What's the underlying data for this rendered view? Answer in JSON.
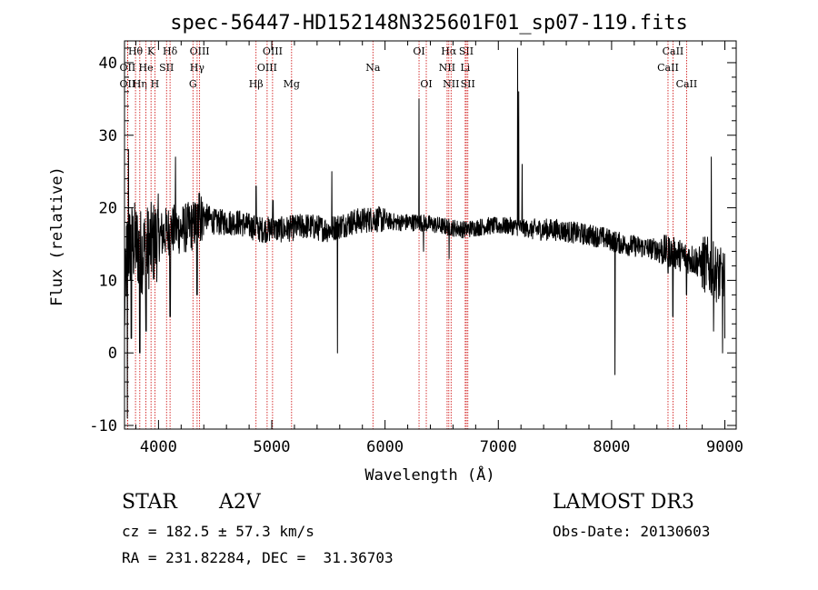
{
  "chart_data": {
    "type": "line",
    "title": "spec-56447-HD152148N325601F01_sp07-119.fits",
    "xlabel": "Wavelength (Å)",
    "ylabel": "Flux (relative)",
    "xlim": [
      3700,
      9100
    ],
    "ylim": [
      -10.5,
      43
    ],
    "xticks": [
      4000,
      5000,
      6000,
      7000,
      8000,
      9000
    ],
    "yticks": [
      -10,
      0,
      10,
      20,
      30,
      40
    ],
    "grid": false,
    "spectrum_anchors": {
      "x": [
        3700,
        3720,
        3760,
        3800,
        3850,
        3900,
        3950,
        4000,
        4100,
        4200,
        4300,
        4400,
        4500,
        4700,
        4900,
        5100,
        5300,
        5500,
        5700,
        5900,
        6100,
        6300,
        6500,
        6700,
        6900,
        7100,
        7300,
        7500,
        7700,
        7900,
        8100,
        8300,
        8500,
        8700,
        8850,
        9000
      ],
      "y": [
        5,
        14,
        15,
        15,
        14,
        14.5,
        15,
        16,
        17,
        17,
        17.5,
        19,
        18,
        18,
        17,
        17,
        17.5,
        17,
        18,
        18.5,
        18,
        18,
        17.5,
        17,
        17.5,
        17.5,
        17,
        17,
        16.5,
        16,
        15,
        14.5,
        14,
        13,
        12,
        10
      ]
    },
    "spectrum_features": {
      "x": [
        3725,
        3735,
        3760,
        3835,
        3890,
        4102,
        4150,
        4340,
        4360,
        4861,
        5010,
        5530,
        5580,
        6300,
        6340,
        6565,
        7170,
        7180,
        7210,
        8030,
        8498,
        8542,
        8662,
        8880,
        8900,
        8940,
        8980,
        9000
      ],
      "y": [
        -9,
        28,
        2,
        0,
        3,
        5,
        27,
        8,
        22,
        23,
        21,
        25,
        0,
        35,
        14,
        13,
        42,
        36,
        26,
        -3,
        11,
        5,
        8,
        27,
        3,
        12,
        0,
        2
      ],
      "width": [
        4,
        3,
        5,
        5,
        5,
        8,
        4,
        6,
        5,
        6,
        5,
        3,
        3,
        3,
        3,
        4,
        3,
        3,
        4,
        3,
        4,
        4,
        4,
        4,
        4,
        4,
        4,
        4
      ]
    },
    "lines": [
      {
        "label": "Hθ",
        "x": 3797,
        "row": 0
      },
      {
        "label": "OII",
        "x": 3727,
        "row": 1
      },
      {
        "label": "OII",
        "x": 3727,
        "row": 2
      },
      {
        "label": "Hη",
        "x": 3835,
        "row": 2
      },
      {
        "label": "He",
        "x": 3889,
        "row": 1
      },
      {
        "label": "K",
        "x": 3934,
        "row": 0
      },
      {
        "label": "SII",
        "x": 4071,
        "row": 1
      },
      {
        "label": "H",
        "x": 3968,
        "row": 2
      },
      {
        "label": "Hδ",
        "x": 4102,
        "row": 0
      },
      {
        "label": "OIII",
        "x": 4363,
        "row": 0
      },
      {
        "label": "Hγ",
        "x": 4341,
        "row": 1
      },
      {
        "label": "G",
        "x": 4304,
        "row": 2
      },
      {
        "label": "Hβ",
        "x": 4861,
        "row": 2
      },
      {
        "label": "OIII",
        "x": 5007,
        "row": 0
      },
      {
        "label": "OIII",
        "x": 4959,
        "row": 1
      },
      {
        "label": "Mg",
        "x": 5175,
        "row": 2
      },
      {
        "label": "Na",
        "x": 5893,
        "row": 1
      },
      {
        "label": "OI",
        "x": 6300,
        "row": 0
      },
      {
        "label": "OI",
        "x": 6364,
        "row": 2
      },
      {
        "label": "Hα",
        "x": 6563,
        "row": 0
      },
      {
        "label": "NII",
        "x": 6548,
        "row": 1
      },
      {
        "label": "NII",
        "x": 6583,
        "row": 2
      },
      {
        "label": "SII",
        "x": 6717,
        "row": 0
      },
      {
        "label": "Li",
        "x": 6708,
        "row": 1
      },
      {
        "label": "SII",
        "x": 6731,
        "row": 2
      },
      {
        "label": "CaII",
        "x": 8542,
        "row": 0
      },
      {
        "label": "CaII",
        "x": 8498,
        "row": 1
      },
      {
        "label": "CaII",
        "x": 8662,
        "row": 2
      }
    ],
    "line_color": "#cc0000"
  },
  "info": {
    "object_class": "STAR",
    "subclass": "A2V",
    "survey": "LAMOST DR3",
    "cz": "cz = 182.5 ± 57.3 km/s",
    "obs_date": "Obs-Date: 20130603",
    "coords": "RA = 231.82284, DEC =  31.36703"
  }
}
